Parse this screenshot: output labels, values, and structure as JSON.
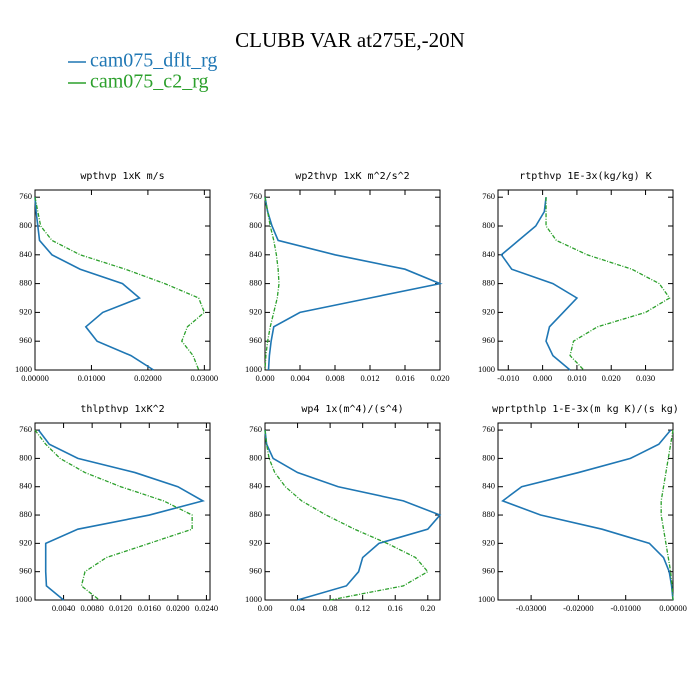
{
  "title": "CLUBB VAR at275E,-20N",
  "chart_data": [
    {
      "type": "line",
      "title": "wpthvp  1xK m/s",
      "y": [
        760,
        780,
        800,
        820,
        840,
        860,
        880,
        900,
        920,
        940,
        960,
        980,
        1000
      ],
      "ylim": [
        1000,
        750
      ],
      "yticks": [
        760,
        800,
        840,
        880,
        920,
        960,
        1000
      ],
      "xlim": [
        0,
        0.031
      ],
      "xticks": [
        {
          "value": 0,
          "label": "0.00000"
        },
        {
          "value": 0.01,
          "label": "0.01000"
        },
        {
          "value": 0.02,
          "label": "0.02000"
        },
        {
          "value": 0.03,
          "label": "0.03000"
        }
      ],
      "series": [
        {
          "name": "cam075_dflt_rg",
          "color": "#1f77b4",
          "values": [
            0,
            0.0002,
            0.0005,
            0.0008,
            0.003,
            0.008,
            0.0155,
            0.0185,
            0.012,
            0.009,
            0.011,
            0.017,
            0.021
          ]
        },
        {
          "name": "cam075_c2_rg",
          "color": "#2ca02c",
          "values": [
            0,
            0.0005,
            0.001,
            0.003,
            0.008,
            0.016,
            0.023,
            0.029,
            0.03,
            0.027,
            0.026,
            0.028,
            0.029
          ]
        }
      ]
    },
    {
      "type": "line",
      "title": "wp2thvp  1xK m^2/s^2",
      "y": [
        760,
        780,
        800,
        820,
        840,
        860,
        880,
        900,
        920,
        940,
        960,
        980,
        1000
      ],
      "ylim": [
        1000,
        750
      ],
      "yticks": [
        760,
        800,
        840,
        880,
        920,
        960,
        1000
      ],
      "xlim": [
        0,
        0.02
      ],
      "xticks": [
        {
          "value": 0,
          "label": "0.000"
        },
        {
          "value": 0.004,
          "label": "0.004"
        },
        {
          "value": 0.008,
          "label": "0.008"
        },
        {
          "value": 0.012,
          "label": "0.012"
        },
        {
          "value": 0.016,
          "label": "0.016"
        },
        {
          "value": 0.02,
          "label": "0.020"
        }
      ],
      "series": [
        {
          "name": "cam075_dflt_rg",
          "color": "#1f77b4",
          "values": [
            0,
            0.0003,
            0.0008,
            0.0015,
            0.008,
            0.016,
            0.02,
            0.012,
            0.004,
            0.001,
            0.0007,
            0.0005,
            0.0004
          ]
        },
        {
          "name": "cam075_c2_rg",
          "color": "#2ca02c",
          "values": [
            0,
            0.0003,
            0.0006,
            0.001,
            0.0013,
            0.0015,
            0.0016,
            0.0014,
            0.001,
            0.0006,
            0.0003,
            0.0001,
            0
          ]
        }
      ]
    },
    {
      "type": "line",
      "title": "rtpthvp  1E-3x(kg/kg) K",
      "y": [
        760,
        780,
        800,
        820,
        840,
        860,
        880,
        900,
        920,
        940,
        960,
        980,
        1000
      ],
      "ylim": [
        1000,
        750
      ],
      "yticks": [
        760,
        800,
        840,
        880,
        920,
        960,
        1000
      ],
      "xlim": [
        -0.013,
        0.038
      ],
      "xticks": [
        {
          "value": -0.01,
          "label": "-0.010"
        },
        {
          "value": 0,
          "label": "0.000"
        },
        {
          "value": 0.01,
          "label": "0.010"
        },
        {
          "value": 0.02,
          "label": "0.020"
        },
        {
          "value": 0.03,
          "label": "0.030"
        }
      ],
      "series": [
        {
          "name": "cam075_dflt_rg",
          "color": "#1f77b4",
          "values": [
            0.001,
            0.0005,
            -0.002,
            -0.007,
            -0.012,
            -0.009,
            0.003,
            0.01,
            0.006,
            0.002,
            0.001,
            0.003,
            0.008
          ]
        },
        {
          "name": "cam075_c2_rg",
          "color": "#2ca02c",
          "values": [
            0.001,
            0.001,
            0.001,
            0.004,
            0.013,
            0.026,
            0.034,
            0.037,
            0.03,
            0.016,
            0.009,
            0.008,
            0.012
          ]
        }
      ]
    },
    {
      "type": "line",
      "title": "thlpthvp  1xK^2",
      "y": [
        760,
        780,
        800,
        820,
        840,
        860,
        880,
        900,
        920,
        940,
        960,
        980,
        1000
      ],
      "ylim": [
        1000,
        750
      ],
      "yticks": [
        760,
        800,
        840,
        880,
        920,
        960,
        1000
      ],
      "xlim": [
        0,
        0.0245
      ],
      "xticks": [
        {
          "value": 0.004,
          "label": "0.0040"
        },
        {
          "value": 0.008,
          "label": "0.0080"
        },
        {
          "value": 0.012,
          "label": "0.0120"
        },
        {
          "value": 0.016,
          "label": "0.0160"
        },
        {
          "value": 0.02,
          "label": "0.0200"
        },
        {
          "value": 0.024,
          "label": "0.0240"
        }
      ],
      "series": [
        {
          "name": "cam075_dflt_rg",
          "color": "#1f77b4",
          "values": [
            0.0005,
            0.002,
            0.006,
            0.014,
            0.02,
            0.0235,
            0.016,
            0.006,
            0.0015,
            0.0015,
            0.0015,
            0.0016,
            0.004
          ]
        },
        {
          "name": "cam075_c2_rg",
          "color": "#2ca02c",
          "values": [
            0,
            0.0015,
            0.0035,
            0.007,
            0.012,
            0.018,
            0.022,
            0.022,
            0.016,
            0.01,
            0.007,
            0.0065,
            0.009
          ]
        }
      ]
    },
    {
      "type": "line",
      "title": "wp4  1x(m^4)/(s^4)",
      "y": [
        760,
        780,
        800,
        820,
        840,
        860,
        880,
        900,
        920,
        940,
        960,
        980,
        1000
      ],
      "ylim": [
        1000,
        750
      ],
      "yticks": [
        760,
        800,
        840,
        880,
        920,
        960,
        1000
      ],
      "xlim": [
        0,
        0.215
      ],
      "xticks": [
        {
          "value": 0,
          "label": "0.00"
        },
        0.04,
        0.08,
        0.12,
        0.16,
        {
          "value": 0.2,
          "label": "0.20"
        }
      ],
      "series": [
        {
          "name": "cam075_dflt_rg",
          "color": "#1f77b4",
          "values": [
            0,
            0.002,
            0.01,
            0.04,
            0.09,
            0.17,
            0.215,
            0.2,
            0.14,
            0.12,
            0.115,
            0.1,
            0.04
          ]
        },
        {
          "name": "cam075_c2_rg",
          "color": "#2ca02c",
          "values": [
            0,
            0.002,
            0.005,
            0.012,
            0.025,
            0.045,
            0.075,
            0.11,
            0.15,
            0.185,
            0.2,
            0.17,
            0.08
          ]
        }
      ]
    },
    {
      "type": "line",
      "title": "wprtpthlp  1-E-3x(m kg K)/(s kg)",
      "y": [
        760,
        780,
        800,
        820,
        840,
        860,
        880,
        900,
        920,
        940,
        960,
        980,
        1000
      ],
      "ylim": [
        1000,
        750
      ],
      "yticks": [
        760,
        800,
        840,
        880,
        920,
        960,
        1000
      ],
      "xlim": [
        -0.037,
        0
      ],
      "xticks": [
        {
          "value": -0.03,
          "label": "-0.03000"
        },
        {
          "value": -0.02,
          "label": "-0.02000"
        },
        {
          "value": -0.01,
          "label": "-0.01000"
        },
        {
          "value": 0,
          "label": "0.00000"
        }
      ],
      "series": [
        {
          "name": "cam075_dflt_rg",
          "color": "#1f77b4",
          "values": [
            -0.0005,
            -0.003,
            -0.009,
            -0.02,
            -0.032,
            -0.036,
            -0.028,
            -0.015,
            -0.005,
            -0.002,
            -0.0008,
            -0.0003,
            0
          ]
        },
        {
          "name": "cam075_c2_rg",
          "color": "#2ca02c",
          "values": [
            0,
            -0.0005,
            -0.001,
            -0.0015,
            -0.002,
            -0.0025,
            -0.0025,
            -0.002,
            -0.0015,
            -0.001,
            -0.0005,
            -0.0002,
            0
          ]
        }
      ]
    }
  ]
}
